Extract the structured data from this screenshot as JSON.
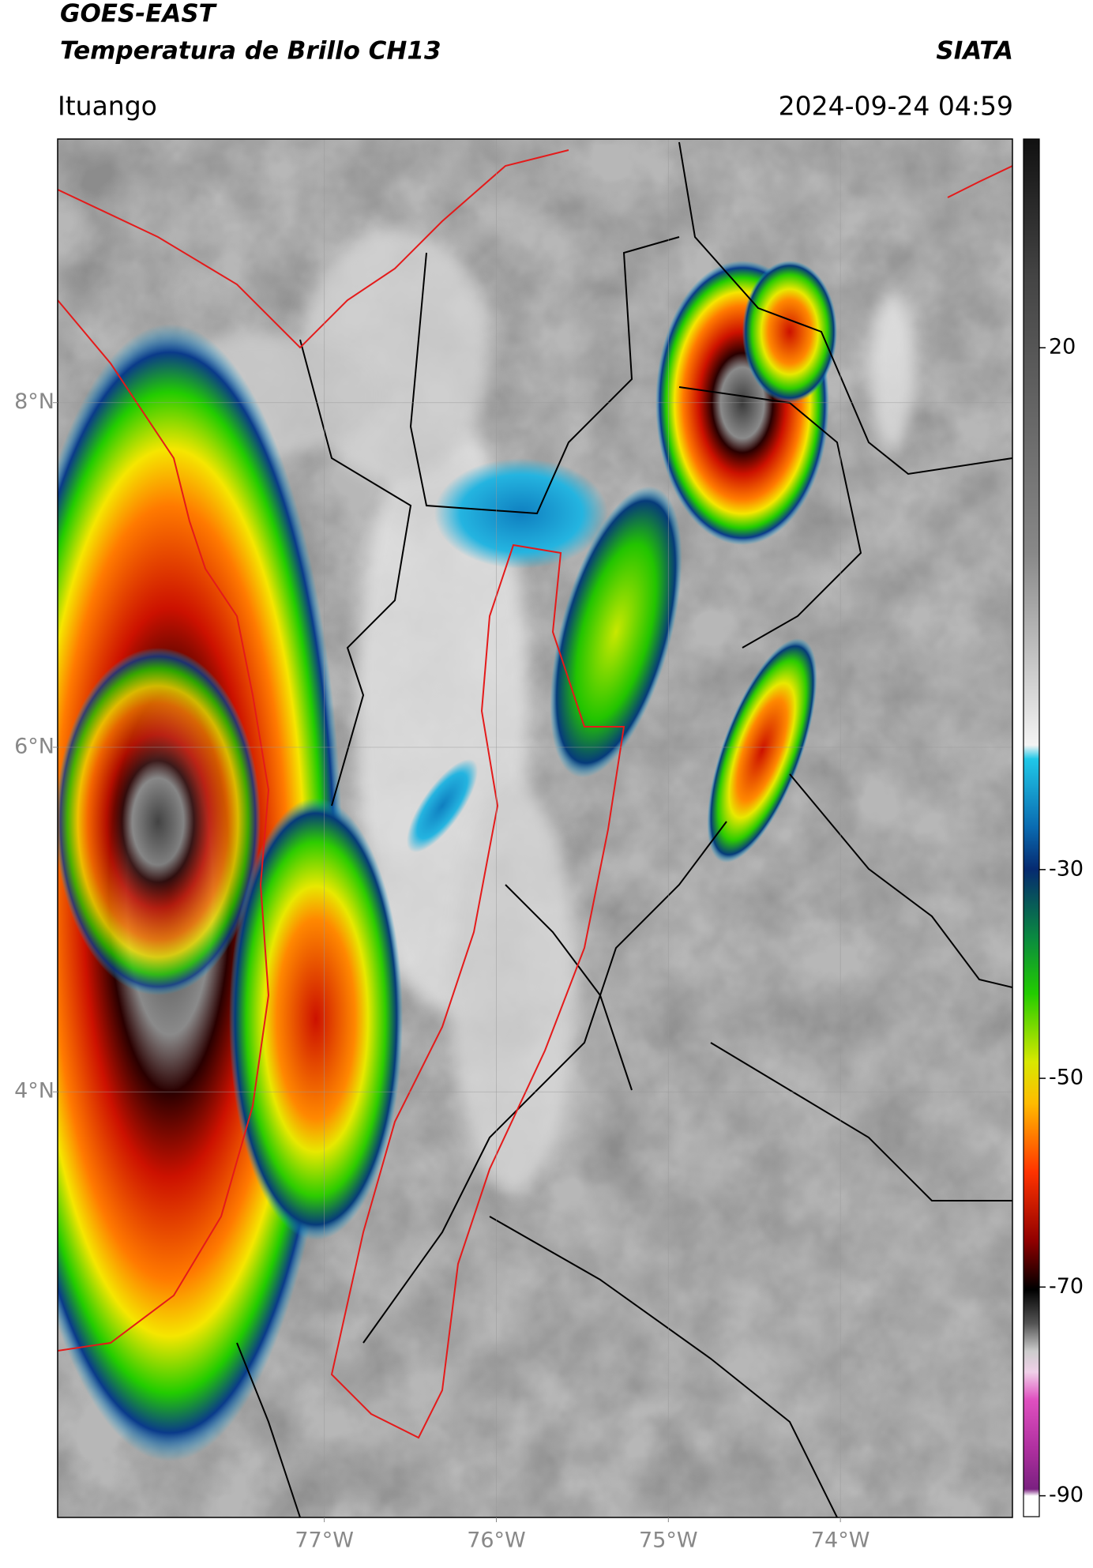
{
  "header": {
    "title": "GOES-EAST",
    "subtitle": "Temperatura de Brillo CH13",
    "agency": "SIATA",
    "location": "Ituango",
    "datetime": "2024-09-24 04:59"
  },
  "map": {
    "xlim": [
      -78.55,
      -73
    ],
    "ylim": [
      1.53,
      9.53
    ],
    "xticks": [
      {
        "value": -77,
        "label": "77°W"
      },
      {
        "value": -76,
        "label": "76°W"
      },
      {
        "value": -75,
        "label": "75°W"
      },
      {
        "value": -74,
        "label": "74°W"
      }
    ],
    "yticks": [
      {
        "value": 8,
        "label": "8°N"
      },
      {
        "value": 6,
        "label": "6°N"
      },
      {
        "value": 4,
        "label": "4°N"
      }
    ],
    "grid": true
  },
  "colorbar": {
    "lim": [
      -92,
      40
    ],
    "ticks": [
      20,
      -30,
      -50,
      -70,
      -90
    ]
  }
}
